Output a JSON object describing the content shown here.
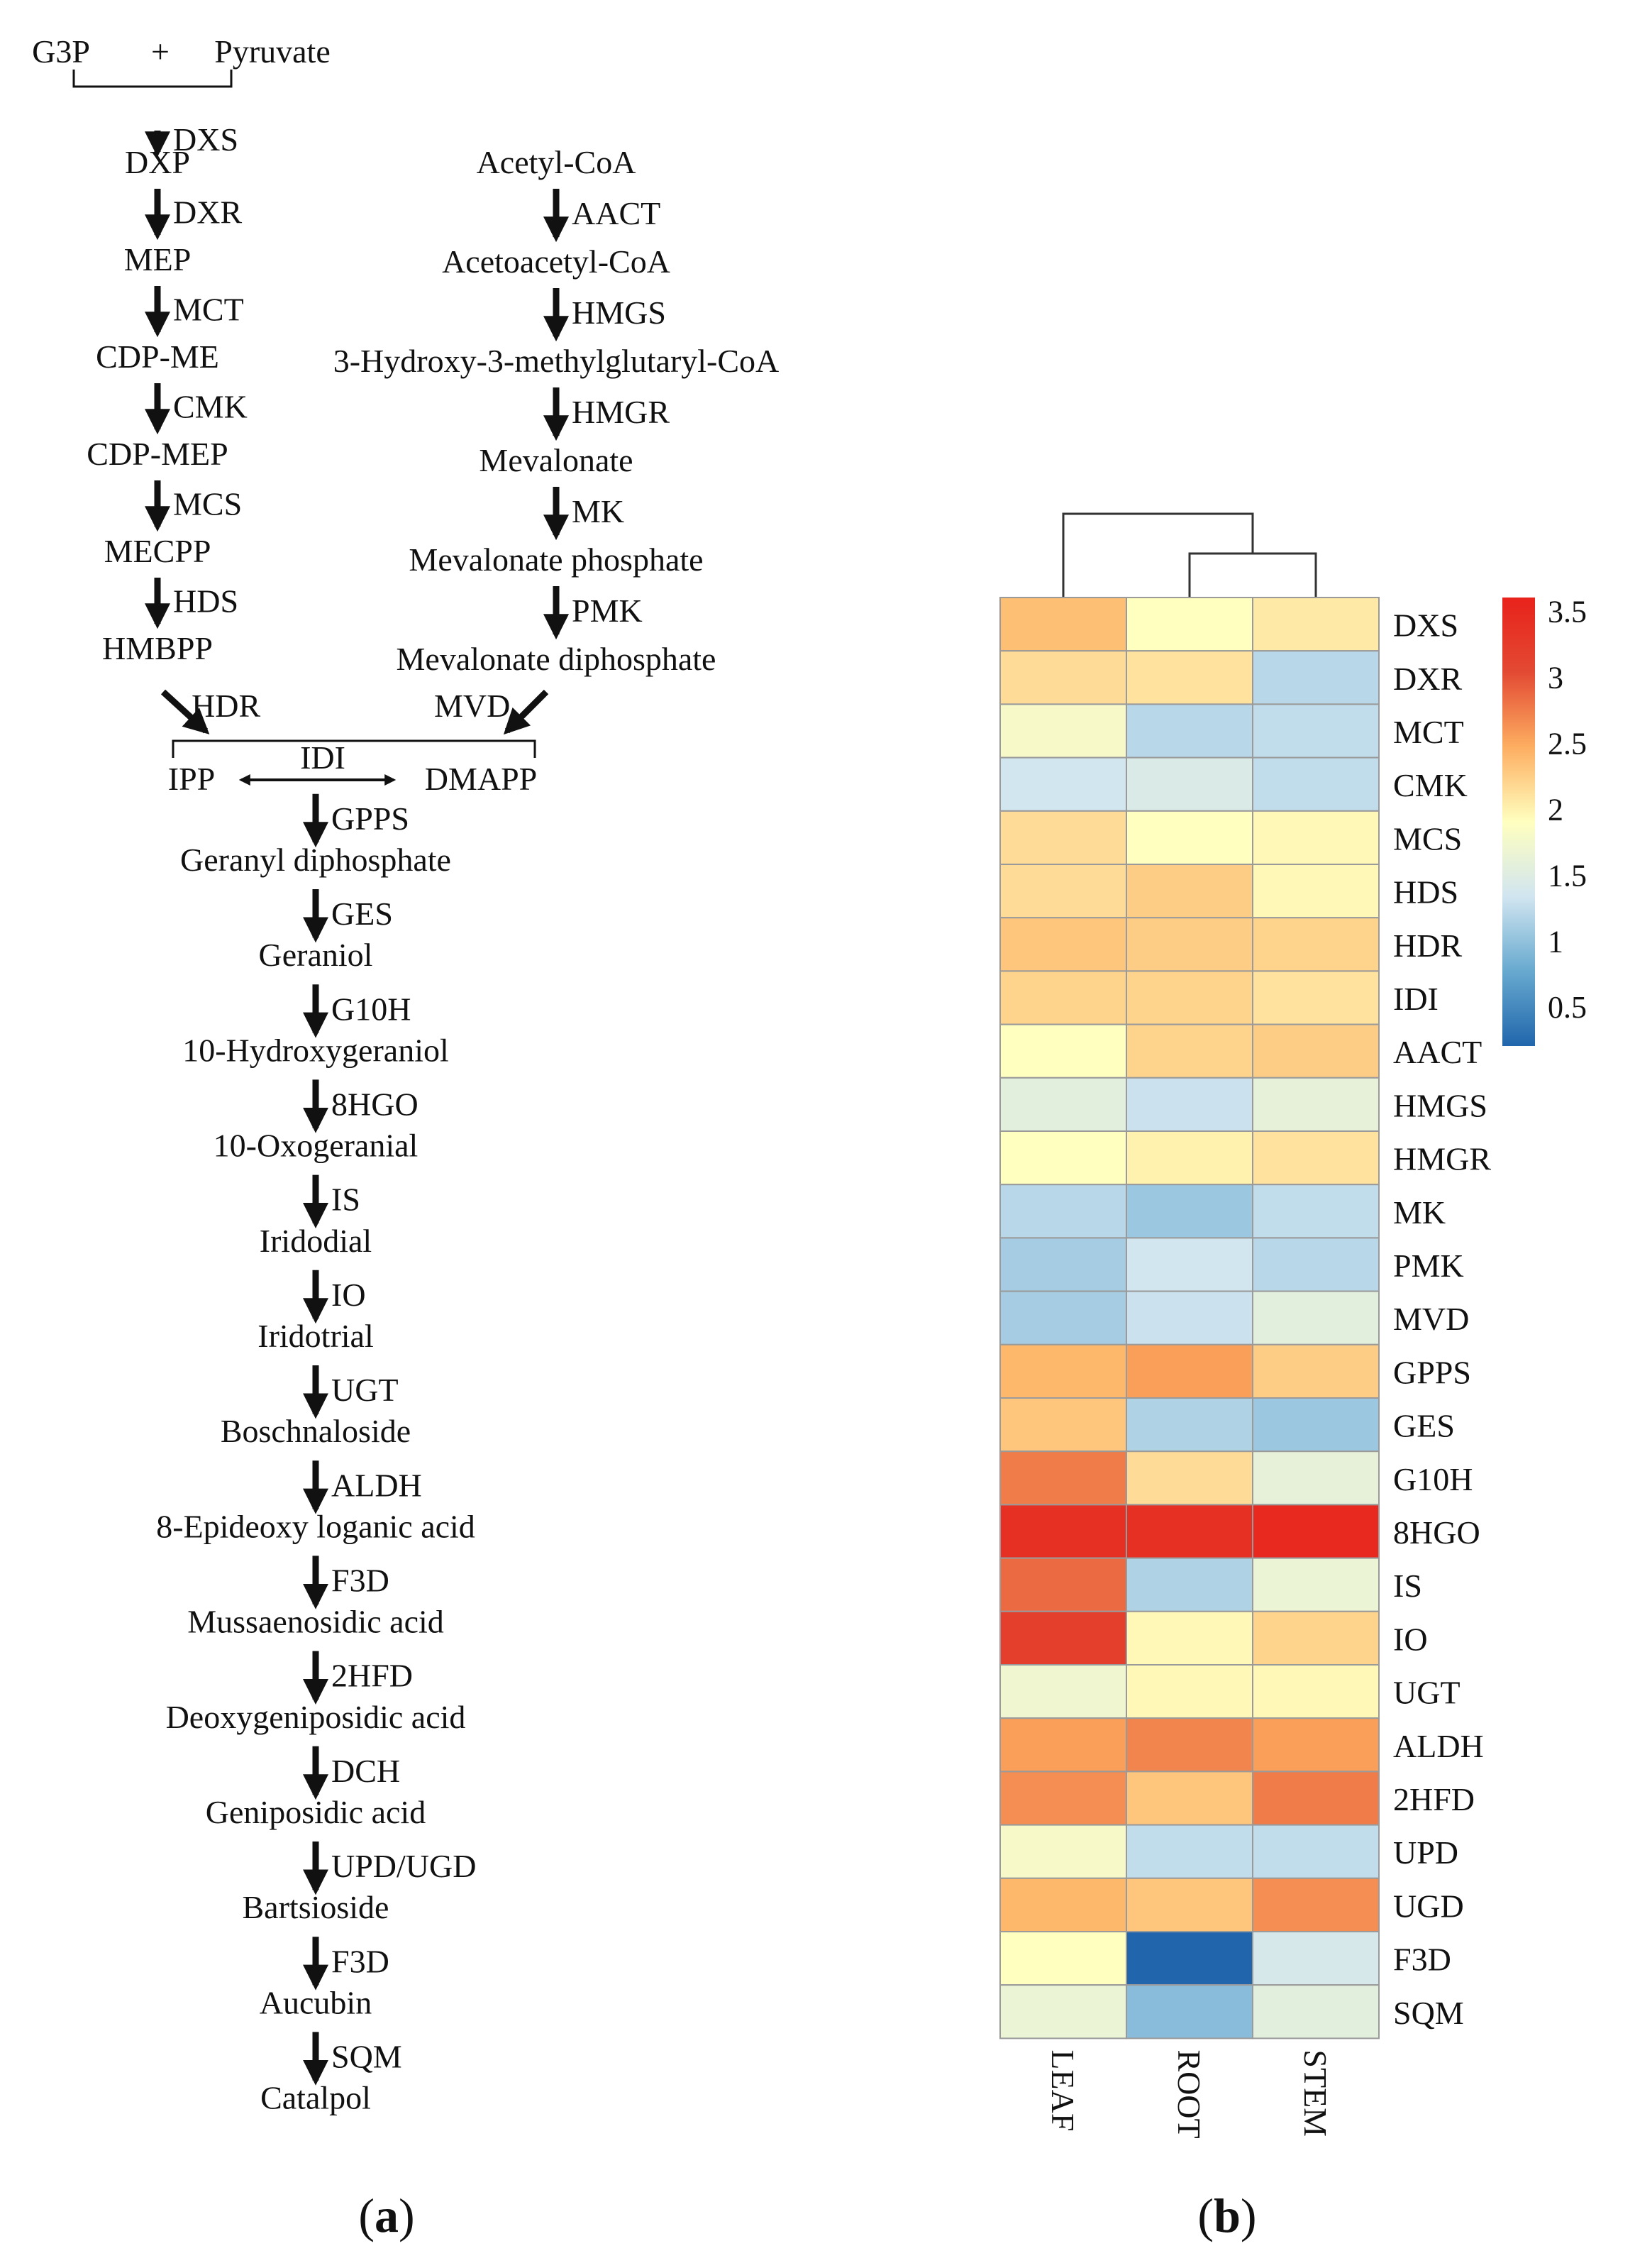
{
  "pathway": {
    "mep": {
      "substrate_left": "G3P",
      "plus": "+",
      "substrate_right": "Pyruvate",
      "metabolites": [
        "DXP",
        "MEP",
        "CDP-ME",
        "CDP-MEP",
        "MECPP",
        "HMBPP"
      ],
      "enzymes": [
        "DXS",
        "DXR",
        "MCT",
        "CMK",
        "MCS",
        "HDS"
      ]
    },
    "mva": {
      "metabolites": [
        "Acetyl-CoA",
        "Acetoacetyl-CoA",
        "3-Hydroxy-3-methylglutaryl-CoA",
        "Mevalonate",
        "Mevalonate phosphate",
        "Mevalonate diphosphate"
      ],
      "enzymes": [
        "AACT",
        "HMGS",
        "HMGR",
        "MK",
        "PMK"
      ]
    },
    "merge": {
      "left_enzyme": "HDR",
      "right_enzyme": "MVD",
      "ipp": "IPP",
      "dmapp": "DMAPP",
      "isomerase": "IDI"
    },
    "iridoid": {
      "metabolites": [
        "Geranyl diphosphate",
        "Geraniol",
        "10-Hydroxygeraniol",
        "10-Oxogeranial",
        "Iridodial",
        "Iridotrial",
        "Boschnaloside",
        "8-Epideoxy loganic acid",
        "Mussaenosidic acid",
        "Deoxygeniposidic acid",
        "Geniposidic acid",
        "Bartsioside",
        "Aucubin",
        "Catalpol"
      ],
      "enzymes": [
        "GPPS",
        "GES",
        "G10H",
        "8HGO",
        "IS",
        "IO",
        "UGT",
        "ALDH",
        "F3D",
        "2HFD",
        "DCH",
        "UPD/UGD",
        "F3D",
        "SQM"
      ]
    }
  },
  "panel_labels": {
    "a": "a",
    "b": "b"
  },
  "chart_data": {
    "type": "heatmap",
    "rows": [
      "DXS",
      "DXR",
      "MCT",
      "CMK",
      "MCS",
      "HDS",
      "HDR",
      "IDI",
      "AACT",
      "HMGS",
      "HMGR",
      "MK",
      "PMK",
      "MVD",
      "GPPS",
      "GES",
      "G10H",
      "8HGO",
      "IS",
      "IO",
      "UGT",
      "ALDH",
      "2HFD",
      "UPD",
      "UGD",
      "F3D",
      "SQM"
    ],
    "columns": [
      "LEAF",
      "ROOT",
      "STEM"
    ],
    "values": [
      [
        2.35,
        1.9,
        2.05
      ],
      [
        2.15,
        2.1,
        1.2
      ],
      [
        1.8,
        1.2,
        1.25
      ],
      [
        1.35,
        1.45,
        1.25
      ],
      [
        2.15,
        1.9,
        1.95
      ],
      [
        2.15,
        2.25,
        1.95
      ],
      [
        2.3,
        2.25,
        2.2
      ],
      [
        2.2,
        2.2,
        2.1
      ],
      [
        1.9,
        2.2,
        2.25
      ],
      [
        1.55,
        1.3,
        1.6
      ],
      [
        1.9,
        2.0,
        2.1
      ],
      [
        1.2,
        1.05,
        1.25
      ],
      [
        1.1,
        1.35,
        1.2
      ],
      [
        1.1,
        1.3,
        1.55
      ],
      [
        2.4,
        2.55,
        2.25
      ],
      [
        2.3,
        1.15,
        1.05
      ],
      [
        2.75,
        2.15,
        1.6
      ],
      [
        3.4,
        3.4,
        3.5
      ],
      [
        2.85,
        1.15,
        1.65
      ],
      [
        3.2,
        1.95,
        2.2
      ],
      [
        1.7,
        1.95,
        1.95
      ],
      [
        2.55,
        2.7,
        2.55
      ],
      [
        2.65,
        2.3,
        2.75
      ],
      [
        1.8,
        1.25,
        1.25
      ],
      [
        2.4,
        2.3,
        2.65
      ],
      [
        1.9,
        0.2,
        1.4
      ],
      [
        1.65,
        0.95,
        1.55
      ]
    ],
    "colorbar": {
      "min": 0.2,
      "max": 3.6,
      "ticks": [
        "3.5",
        "3",
        "2.5",
        "2",
        "1.5",
        "1",
        "0.5"
      ],
      "tick_values": [
        3.5,
        3,
        2.5,
        2,
        1.5,
        1,
        0.5
      ]
    },
    "colorscale": [
      "#2166ac",
      "#67a9cf",
      "#d1e5f0",
      "#ffffbf",
      "#fdae61",
      "#e34a33",
      "#e8221c"
    ],
    "dendrogram": "((ROOT,STEM),LEAF)"
  }
}
